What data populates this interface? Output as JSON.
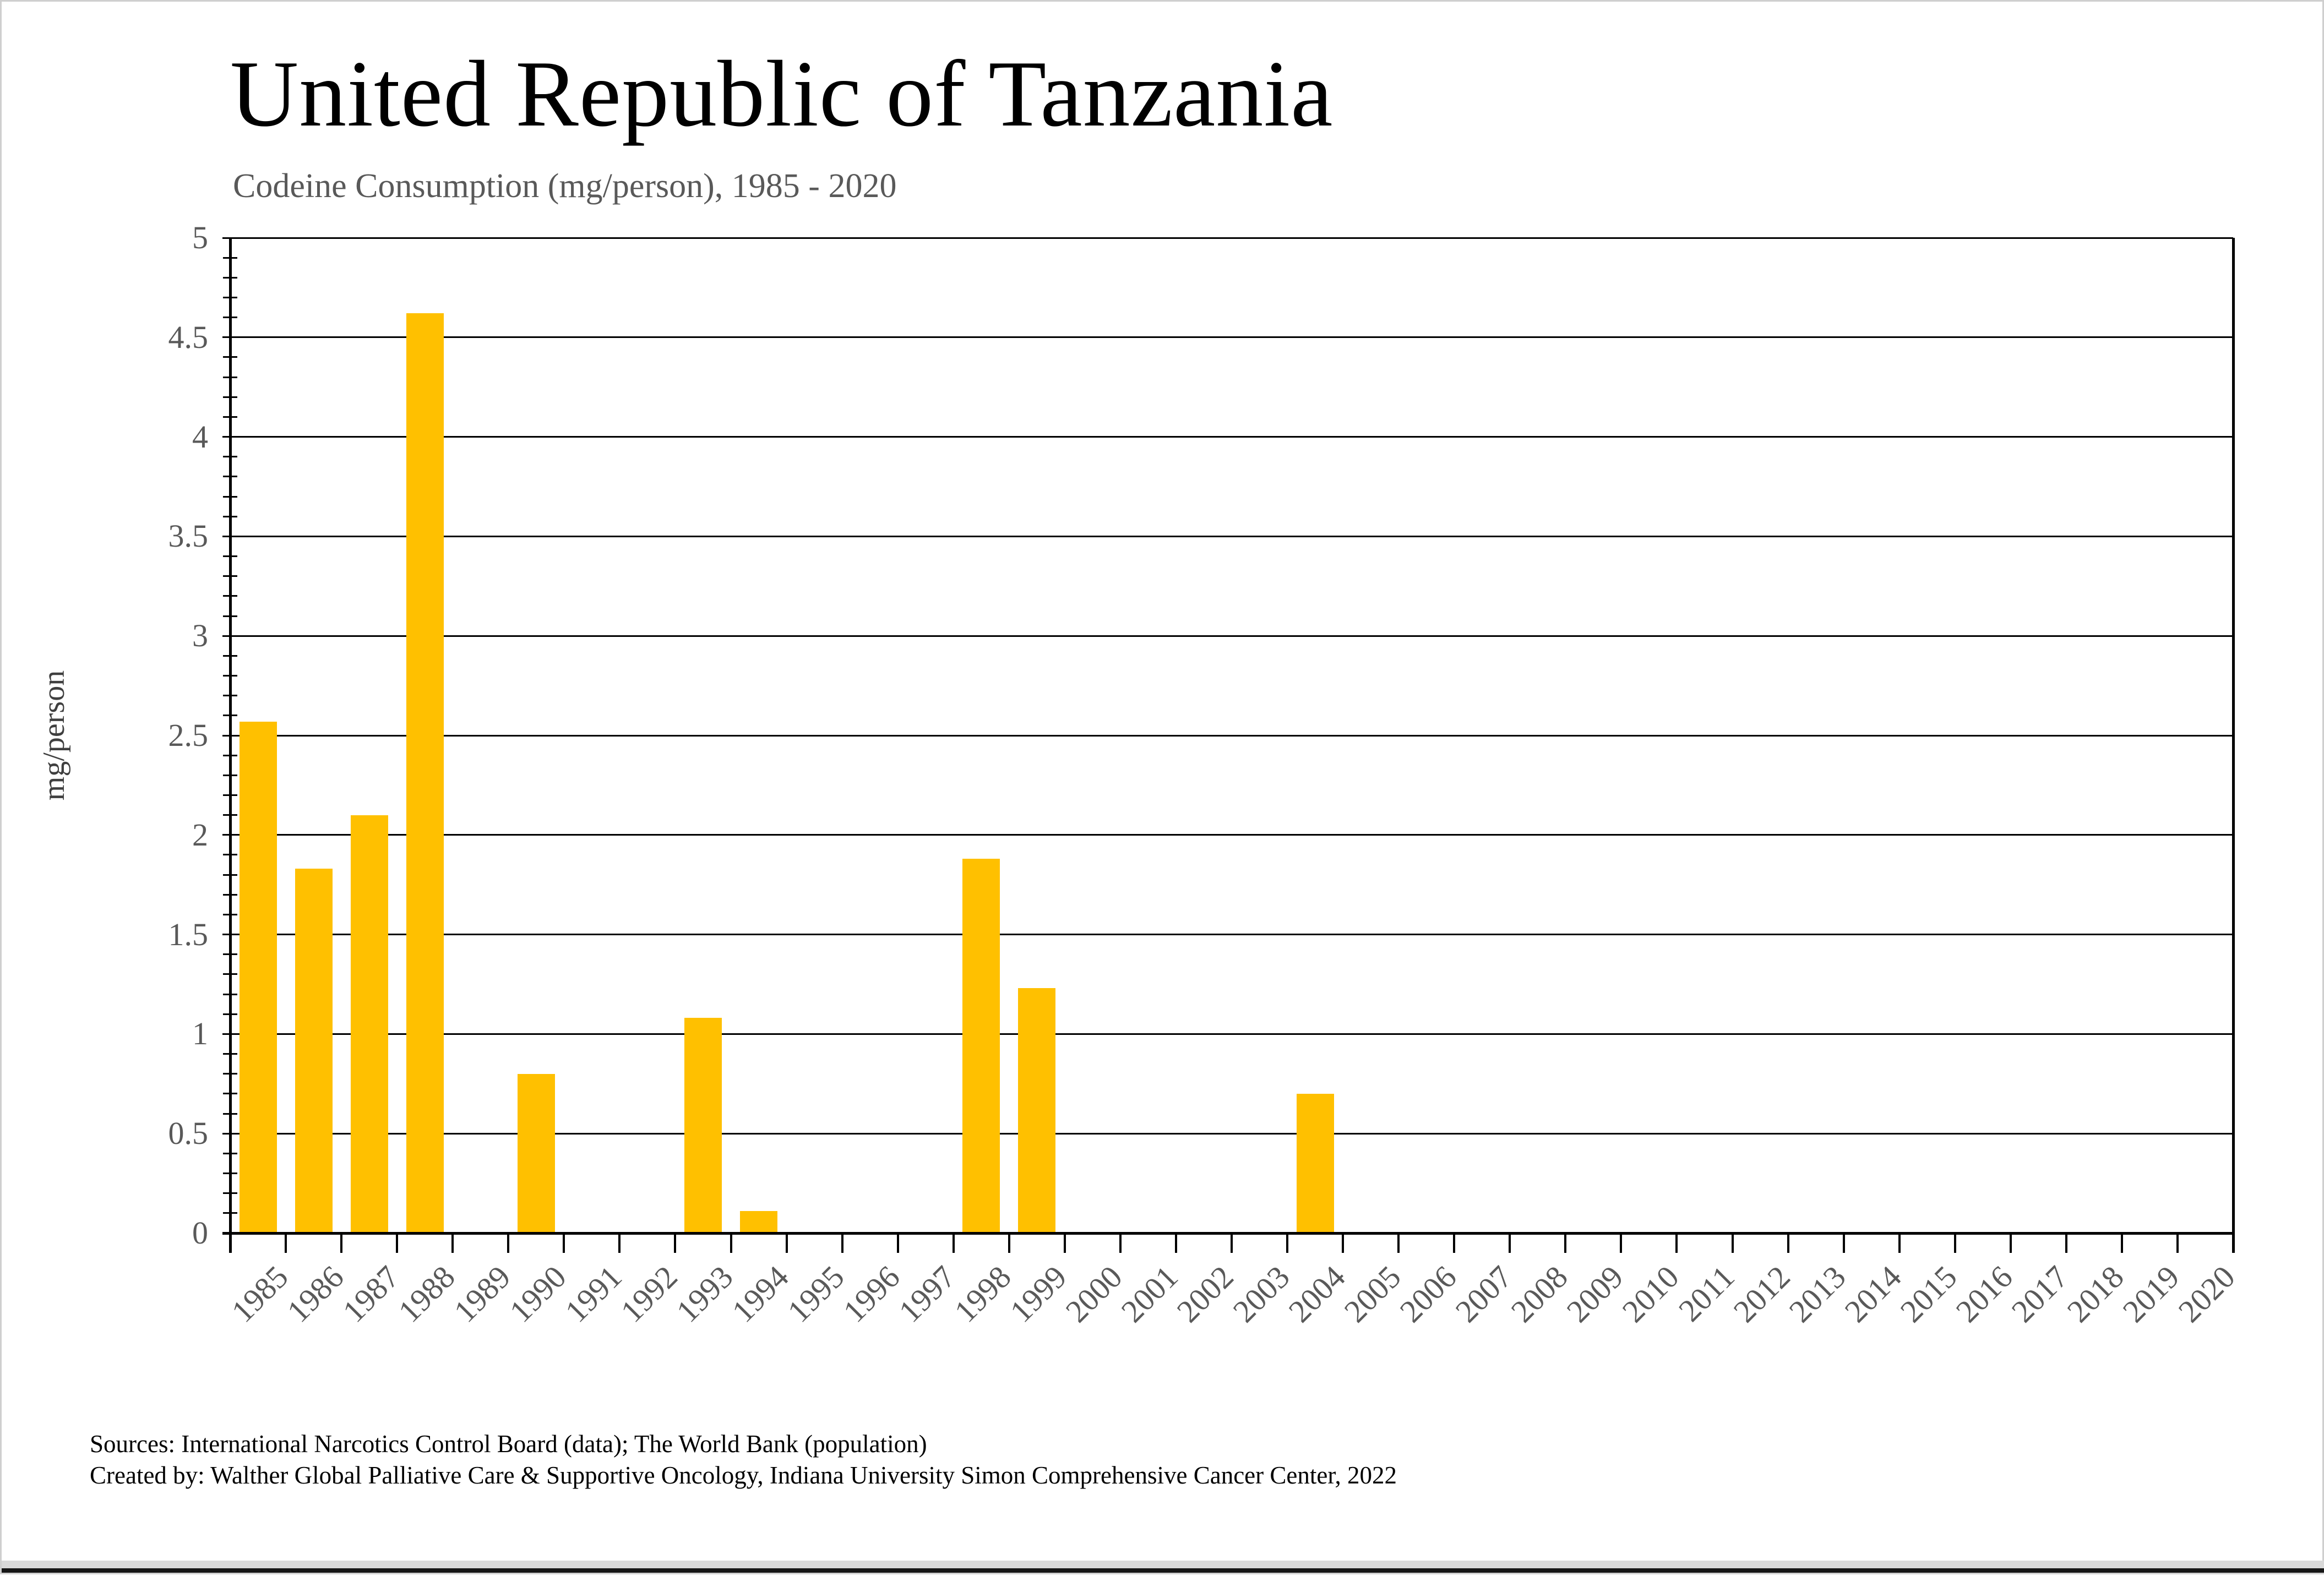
{
  "chart_data": {
    "type": "bar",
    "title": "United Republic of Tanzania",
    "subtitle": "Codeine Consumption (mg/person), 1985 - 2020",
    "ylabel": "mg/person",
    "xlabel": "",
    "ylim": [
      0,
      5
    ],
    "ytick_step": 0.5,
    "ytick_labels": [
      "0",
      "0.5",
      "1",
      "1.5",
      "2",
      "2.5",
      "3",
      "3.5",
      "4",
      "4.5",
      "5"
    ],
    "grid": true,
    "legend": false,
    "bar_color": "#FFC000",
    "axis_text_color": "#595959",
    "categories": [
      "1985",
      "1986",
      "1987",
      "1988",
      "1989",
      "1990",
      "1991",
      "1992",
      "1993",
      "1994",
      "1995",
      "1996",
      "1997",
      "1998",
      "1999",
      "2000",
      "2001",
      "2002",
      "2003",
      "2004",
      "2005",
      "2006",
      "2007",
      "2008",
      "2009",
      "2010",
      "2011",
      "2012",
      "2013",
      "2014",
      "2015",
      "2016",
      "2017",
      "2018",
      "2019",
      "2020"
    ],
    "values": [
      2.57,
      1.83,
      2.1,
      4.62,
      0,
      0.8,
      0,
      0,
      1.08,
      0.11,
      0,
      0,
      0,
      1.88,
      1.23,
      0,
      0,
      0,
      0,
      0.7,
      0,
      0,
      0,
      0,
      0,
      0,
      0,
      0,
      0,
      0,
      0,
      0,
      0,
      0,
      0,
      0
    ]
  },
  "footer": {
    "sources_line1": "Sources: International Narcotics Control Board (data); The World Bank (population)",
    "sources_line2": "Created by: Walther Global Palliative Care & Supportive Oncology, Indiana University Simon Comprehensive Cancer Center, 2022"
  }
}
